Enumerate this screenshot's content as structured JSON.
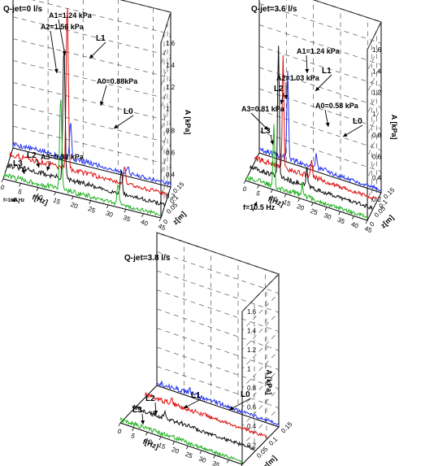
{
  "figure": {
    "chart_data": [
      {
        "type": "line",
        "view": "3d-waterfall",
        "title": "Q-jet=0 l/s",
        "xlabel": "f[Hz]",
        "zlabel": "z[m]",
        "ylabel": "A [kPa]",
        "x_ticks": [
          "0",
          "5",
          "10",
          "15",
          "20",
          "25",
          "30",
          "35",
          "40",
          "45"
        ],
        "z_ticks": [
          "0",
          "0.05",
          "0.1",
          "0.15"
        ],
        "y_ticks": [
          "0.2",
          "0.4",
          "0.6",
          "0.8",
          "1",
          "1.2",
          "1.4",
          "1.6"
        ],
        "xlim": [
          0,
          45
        ],
        "zlim": [
          0,
          0.15
        ],
        "ylim": [
          0,
          1.6
        ],
        "grid": true,
        "series": [
          {
            "name": "L0",
            "z": 0.0,
            "color": "#22b222",
            "peaks": [
              [
                16.4,
                0.88
              ],
              [
                32.8,
                0.18
              ]
            ]
          },
          {
            "name": "L1",
            "z": 0.05,
            "color": "#111111",
            "peaks": [
              [
                16.4,
                1.24
              ],
              [
                32.8,
                0.22
              ]
            ]
          },
          {
            "name": "L2",
            "z": 0.1,
            "color": "#dd1111",
            "peaks": [
              [
                16.4,
                1.56
              ],
              [
                32.8,
                0.16
              ]
            ]
          },
          {
            "name": "L3",
            "z": 0.15,
            "color": "#2233ee",
            "peaks": [
              [
                16.4,
                0.32
              ],
              [
                32.8,
                0.06
              ]
            ]
          }
        ],
        "annotations": [
          {
            "text": "A1=1.24 kPa",
            "target": "L1"
          },
          {
            "text": "A2=1.56 kPa",
            "target": "L2"
          },
          {
            "text": "A0=0.88kPa",
            "target": "L0"
          },
          {
            "text": "A3=0.32 kPa",
            "target": "L3"
          },
          {
            "text": "L1"
          },
          {
            "text": "L0"
          },
          {
            "text": "L2"
          },
          {
            "text": "L3"
          },
          {
            "text": "f=16.4 Hz"
          }
        ]
      },
      {
        "type": "line",
        "view": "3d-waterfall",
        "title": "Q-jet=3.6 l/s",
        "xlabel": "f[Hz]",
        "zlabel": "z[m]",
        "ylabel": "A [kPa]",
        "x_ticks": [
          "0",
          "5",
          "10",
          "15",
          "20",
          "25",
          "30",
          "35",
          "40",
          "45"
        ],
        "z_ticks": [
          "0",
          "0.05",
          "0.1",
          "0.15"
        ],
        "y_ticks": [
          "0.2",
          "0.4",
          "0.6",
          "0.8",
          "1",
          "1.2",
          "1.4",
          "1.6"
        ],
        "xlim": [
          0,
          45
        ],
        "zlim": [
          0,
          0.15
        ],
        "ylim": [
          0,
          1.6
        ],
        "grid": true,
        "series": [
          {
            "name": "L0",
            "z": 0.0,
            "color": "#22b222",
            "peaks": [
              [
                10.5,
                0.58
              ],
              [
                21.0,
                0.1
              ]
            ]
          },
          {
            "name": "L1",
            "z": 0.05,
            "color": "#111111",
            "peaks": [
              [
                10.5,
                1.24
              ],
              [
                21.0,
                0.16
              ]
            ]
          },
          {
            "name": "L2",
            "z": 0.1,
            "color": "#dd1111",
            "peaks": [
              [
                10.5,
                1.03
              ],
              [
                21.0,
                0.14
              ]
            ]
          },
          {
            "name": "L3",
            "z": 0.15,
            "color": "#2233ee",
            "peaks": [
              [
                10.5,
                0.81
              ],
              [
                21.0,
                0.12
              ]
            ]
          }
        ],
        "annotations": [
          {
            "text": "A1=1.24 kPa",
            "target": "L1"
          },
          {
            "text": "A2=1.03 kPa",
            "target": "L2"
          },
          {
            "text": "A3=0.81 kPa",
            "target": "L3"
          },
          {
            "text": "A0=0.58 kPa",
            "target": "L0"
          },
          {
            "text": "L1"
          },
          {
            "text": "L2"
          },
          {
            "text": "L3"
          },
          {
            "text": "L0"
          },
          {
            "text": "f=10.5 Hz"
          }
        ]
      },
      {
        "type": "line",
        "view": "3d-waterfall",
        "title": "Q-jet=3.8 l/s",
        "xlabel": "f[Hz]",
        "zlabel": "z[m]",
        "ylabel": "A [kPa]",
        "x_ticks": [
          "0",
          "5",
          "10",
          "15",
          "20",
          "25",
          "30",
          "35",
          "40",
          "45"
        ],
        "z_ticks": [
          "0",
          "0.05",
          "0.1",
          "0.15"
        ],
        "y_ticks": [
          "0.2",
          "0.4",
          "0.6",
          "0.8",
          "1",
          "1.2",
          "1.4",
          "1.6"
        ],
        "xlim": [
          0,
          45
        ],
        "zlim": [
          0,
          0.15
        ],
        "ylim": [
          0,
          1.6
        ],
        "grid": true,
        "series": [
          {
            "name": "L0",
            "z": 0.0,
            "color": "#22b222",
            "peaks": []
          },
          {
            "name": "L1",
            "z": 0.05,
            "color": "#111111",
            "peaks": [
              [
                12.0,
                0.08
              ]
            ]
          },
          {
            "name": "L2",
            "z": 0.1,
            "color": "#dd1111",
            "peaks": [
              [
                10.0,
                0.06
              ]
            ]
          },
          {
            "name": "L3",
            "z": 0.15,
            "color": "#2233ee",
            "peaks": [
              [
                12.0,
                0.05
              ]
            ]
          }
        ],
        "annotations": [
          {
            "text": "L1"
          },
          {
            "text": "L0"
          },
          {
            "text": "L2"
          },
          {
            "text": "L3"
          }
        ]
      }
    ]
  }
}
